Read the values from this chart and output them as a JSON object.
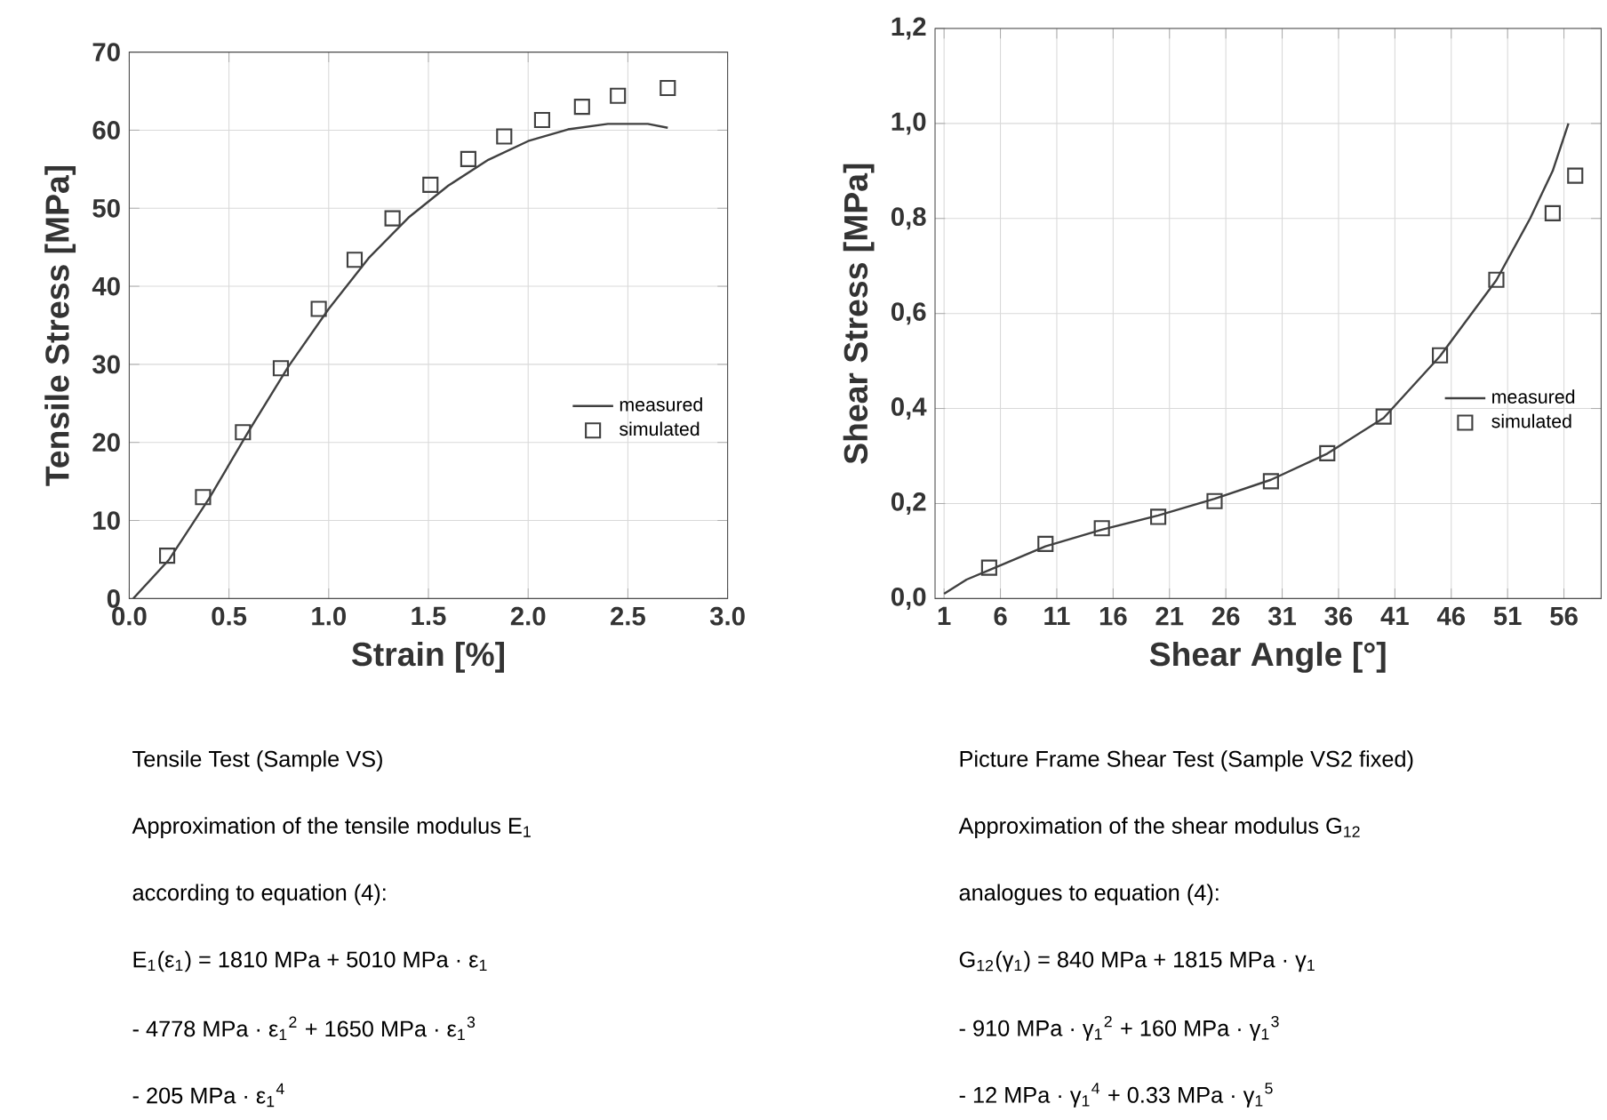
{
  "chart_data": [
    {
      "type": "line",
      "xlabel": "Strain [%]",
      "ylabel": "Tensile Stress [MPa]",
      "xlim": [
        0,
        3
      ],
      "ylim": [
        0,
        70
      ],
      "xticks": [
        {
          "value": 0,
          "label": "0.0"
        },
        {
          "value": 0.5,
          "label": "0.5"
        },
        {
          "value": 1,
          "label": "1.0"
        },
        {
          "value": 1.5,
          "label": "1.5"
        },
        {
          "value": 2,
          "label": "2.0"
        },
        {
          "value": 2.5,
          "label": "2.5"
        },
        {
          "value": 3,
          "label": "3.0"
        }
      ],
      "yticks": [
        0,
        10,
        20,
        30,
        40,
        50,
        60,
        70
      ],
      "grid": true,
      "legend": "right",
      "series": [
        {
          "name": "measured",
          "color": "#404040",
          "marker": "none",
          "line_style": "solid",
          "x": [
            0.02,
            0.2,
            0.4,
            0.6,
            0.8,
            1.0,
            1.2,
            1.4,
            1.6,
            1.8,
            2.0,
            2.2,
            2.4,
            2.6,
            2.7
          ],
          "values": [
            0,
            5,
            12.8,
            21.5,
            29.8,
            37.1,
            43.6,
            48.8,
            52.9,
            56.2,
            58.6,
            60.1,
            60.8,
            60.8,
            60.3
          ]
        },
        {
          "name": "simulated",
          "type": "scatter",
          "color": "#404040",
          "marker": "square",
          "x": [
            0.19,
            0.37,
            0.57,
            0.76,
            0.95,
            1.13,
            1.32,
            1.51,
            1.7,
            1.88,
            2.07,
            2.27,
            2.45,
            2.7
          ],
          "values": [
            5.5,
            13.0,
            21.3,
            29.5,
            37.1,
            43.4,
            48.7,
            53.0,
            56.3,
            59.2,
            61.3,
            63.0,
            64.4,
            65.4
          ]
        }
      ],
      "annotations": [
        "Tensile Test (Sample VS)",
        "Approximation of the tensile modulus E$_{1}$",
        "according to equation (4):",
        "E$_{1}$(ε$_{1}$) = 1810 MPa + 5010 MPa · ε$_{1}$",
        "- 4778 MPa · ε$_{1}$$^{2}$ + 1650 MPa · ε$_{1}$$^{3}$",
        "- 205 MPa · ε$_{1}$$^{4}$"
      ]
    },
    {
      "type": "line",
      "xlabel": "Shear Angle [°]",
      "ylabel": "Shear Stress [MPa]",
      "xlim": [
        0.2,
        59.3
      ],
      "ylim": [
        0,
        1.2
      ],
      "xticks": [
        1,
        6,
        11,
        16,
        21,
        26,
        31,
        36,
        41,
        46,
        51,
        56
      ],
      "yticks": [
        {
          "value": 0,
          "label": "0,0"
        },
        {
          "value": 0.2,
          "label": "0,2"
        },
        {
          "value": 0.4,
          "label": "0,4"
        },
        {
          "value": 0.6,
          "label": "0,6"
        },
        {
          "value": 0.8,
          "label": "0,8"
        },
        {
          "value": 1.0,
          "label": "1,0"
        },
        {
          "value": 1.2,
          "label": "1,2"
        }
      ],
      "grid": true,
      "legend": "right",
      "series": [
        {
          "name": "measured",
          "color": "#404040",
          "marker": "none",
          "line_style": "solid",
          "x": [
            1,
            3,
            5,
            10,
            15,
            20,
            25,
            30,
            35,
            40,
            45,
            50,
            53,
            55,
            56.4
          ],
          "values": [
            0.01,
            0.04,
            0.06,
            0.11,
            0.145,
            0.175,
            0.21,
            0.25,
            0.305,
            0.38,
            0.51,
            0.67,
            0.8,
            0.9,
            1.0
          ]
        },
        {
          "name": "simulated",
          "type": "scatter",
          "color": "#404040",
          "marker": "square",
          "x": [
            5,
            10,
            15,
            20,
            25,
            30,
            35,
            40,
            45,
            50,
            55,
            57
          ],
          "values": [
            0.065,
            0.115,
            0.148,
            0.172,
            0.205,
            0.247,
            0.306,
            0.383,
            0.512,
            0.671,
            0.811,
            0.89
          ]
        }
      ],
      "annotations": [
        "Picture Frame Shear Test (Sample VS2 fixed)",
        "Approximation of the shear modulus G$_{12}$",
        "analogues to equation (4):",
        "G$_{12}$(γ$_{1}$) = 840 MPa + 1815 MPa · γ$_{1}$",
        "- 910 MPa · γ$_{1}$$^{2}$ + 160 MPa · γ$_{1}$$^{3}$",
        "- 12 MPa · γ$_{1}$$^{4}$ + 0.33 MPa · γ$_{1}$$^{5}$"
      ]
    }
  ]
}
